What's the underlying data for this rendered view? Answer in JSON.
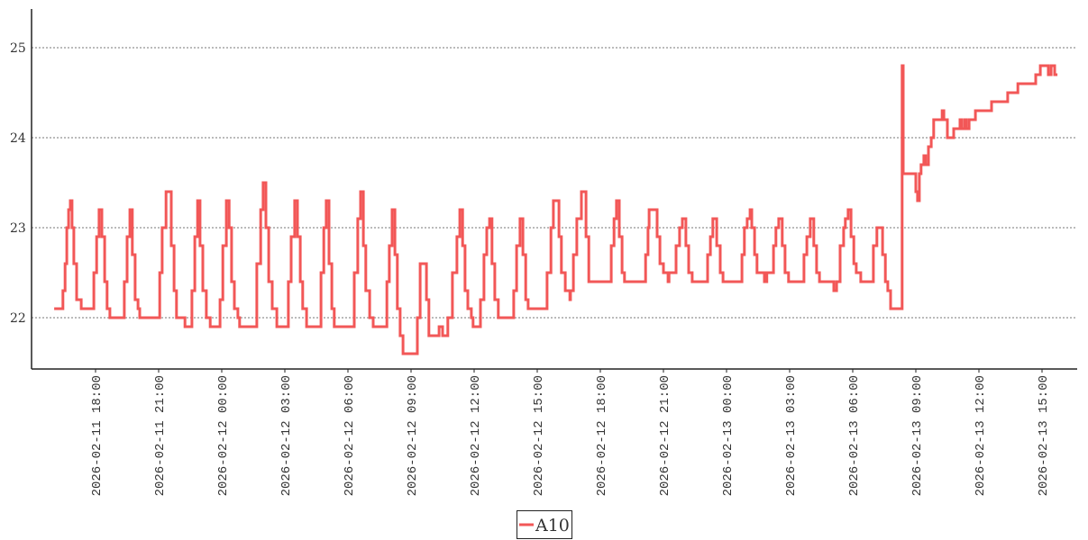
{
  "chart_data": {
    "type": "line",
    "step": "after",
    "title": "",
    "xlabel": "",
    "ylabel": "",
    "ylim": [
      21.43,
      25.43
    ],
    "xlim": [
      "2026-02-11 15:40",
      "2026-02-13 17:25"
    ],
    "grid": {
      "y": true,
      "x": false,
      "style": "dotted"
    },
    "legend": "bottom-center",
    "y_ticks": [
      "22",
      "23",
      "24",
      "25"
    ],
    "x_ticks": [
      "2026-02-11  18:00",
      "2026-02-11  21:00",
      "2026-02-12  00:00",
      "2026-02-12  03:00",
      "2026-02-12  06:00",
      "2026-02-12  09:00",
      "2026-02-12  12:00",
      "2026-02-12  15:00",
      "2026-02-12  18:00",
      "2026-02-12  21:00",
      "2026-02-13  00:00",
      "2026-02-13  03:00",
      "2026-02-13  06:00",
      "2026-02-13  09:00",
      "2026-02-13  12:00",
      "2026-02-13  15:00"
    ],
    "series": [
      {
        "name": "A10",
        "color": "#f25757",
        "points": [
          [
            "2026-02-11 16:02",
            22.1
          ],
          [
            "2026-02-11 16:20",
            22.1
          ],
          [
            "2026-02-11 16:27",
            22.3
          ],
          [
            "2026-02-11 16:33",
            22.6
          ],
          [
            "2026-02-11 16:38",
            23.0
          ],
          [
            "2026-02-11 16:43",
            23.2
          ],
          [
            "2026-02-11 16:48",
            23.3
          ],
          [
            "2026-02-11 16:53",
            23.0
          ],
          [
            "2026-02-11 16:58",
            22.6
          ],
          [
            "2026-02-11 17:06",
            22.2
          ],
          [
            "2026-02-11 17:19",
            22.1
          ],
          [
            "2026-02-11 17:47",
            22.1
          ],
          [
            "2026-02-11 17:55",
            22.5
          ],
          [
            "2026-02-11 18:03",
            22.9
          ],
          [
            "2026-02-11 18:10",
            23.2
          ],
          [
            "2026-02-11 18:18",
            22.9
          ],
          [
            "2026-02-11 18:26",
            22.4
          ],
          [
            "2026-02-11 18:33",
            22.1
          ],
          [
            "2026-02-11 18:41",
            22.0
          ],
          [
            "2026-02-11 19:15",
            22.0
          ],
          [
            "2026-02-11 19:22",
            22.4
          ],
          [
            "2026-02-11 19:30",
            22.9
          ],
          [
            "2026-02-11 19:38",
            23.2
          ],
          [
            "2026-02-11 19:45",
            22.7
          ],
          [
            "2026-02-11 19:53",
            22.2
          ],
          [
            "2026-02-11 20:01",
            22.1
          ],
          [
            "2026-02-11 20:06",
            22.0
          ],
          [
            "2026-02-11 20:55",
            22.0
          ],
          [
            "2026-02-11 21:03",
            22.5
          ],
          [
            "2026-02-11 21:10",
            23.0
          ],
          [
            "2026-02-11 21:21",
            23.4
          ],
          [
            "2026-02-11 21:28",
            23.4
          ],
          [
            "2026-02-11 21:36",
            22.8
          ],
          [
            "2026-02-11 21:44",
            22.3
          ],
          [
            "2026-02-11 21:51",
            22.0
          ],
          [
            "2026-02-11 22:15",
            21.9
          ],
          [
            "2026-02-11 22:30",
            21.9
          ],
          [
            "2026-02-11 22:35",
            22.3
          ],
          [
            "2026-02-11 22:43",
            22.9
          ],
          [
            "2026-02-11 22:51",
            23.3
          ],
          [
            "2026-02-11 22:58",
            22.8
          ],
          [
            "2026-02-11 23:06",
            22.3
          ],
          [
            "2026-02-11 23:16",
            22.0
          ],
          [
            "2026-02-11 23:27",
            21.9
          ],
          [
            "2026-02-11 23:50",
            21.9
          ],
          [
            "2026-02-11 23:55",
            22.2
          ],
          [
            "2026-02-12 00:03",
            22.8
          ],
          [
            "2026-02-12 00:13",
            23.3
          ],
          [
            "2026-02-12 00:21",
            23.0
          ],
          [
            "2026-02-12 00:28",
            22.4
          ],
          [
            "2026-02-12 00:36",
            22.1
          ],
          [
            "2026-02-12 00:46",
            22.0
          ],
          [
            "2026-02-12 00:51",
            21.9
          ],
          [
            "2026-02-12 01:30",
            21.9
          ],
          [
            "2026-02-12 01:40",
            22.6
          ],
          [
            "2026-02-12 01:51",
            23.2
          ],
          [
            "2026-02-12 01:58",
            23.5
          ],
          [
            "2026-02-12 02:06",
            23.0
          ],
          [
            "2026-02-12 02:14",
            22.4
          ],
          [
            "2026-02-12 02:24",
            22.1
          ],
          [
            "2026-02-12 02:37",
            21.9
          ],
          [
            "2026-02-12 03:05",
            21.9
          ],
          [
            "2026-02-12 03:10",
            22.4
          ],
          [
            "2026-02-12 03:18",
            22.9
          ],
          [
            "2026-02-12 03:28",
            23.3
          ],
          [
            "2026-02-12 03:36",
            22.9
          ],
          [
            "2026-02-12 03:44",
            22.4
          ],
          [
            "2026-02-12 03:51",
            22.1
          ],
          [
            "2026-02-12 04:02",
            21.9
          ],
          [
            "2026-02-12 04:35",
            21.9
          ],
          [
            "2026-02-12 04:43",
            22.5
          ],
          [
            "2026-02-12 04:51",
            23.0
          ],
          [
            "2026-02-12 04:58",
            23.3
          ],
          [
            "2026-02-12 05:06",
            22.6
          ],
          [
            "2026-02-12 05:14",
            22.1
          ],
          [
            "2026-02-12 05:21",
            21.9
          ],
          [
            "2026-02-12 06:10",
            21.9
          ],
          [
            "2026-02-12 06:18",
            22.5
          ],
          [
            "2026-02-12 06:28",
            23.1
          ],
          [
            "2026-02-12 06:36",
            23.4
          ],
          [
            "2026-02-12 06:44",
            22.8
          ],
          [
            "2026-02-12 06:51",
            22.3
          ],
          [
            "2026-02-12 07:02",
            22.0
          ],
          [
            "2026-02-12 07:12",
            21.9
          ],
          [
            "2026-02-12 07:43",
            21.9
          ],
          [
            "2026-02-12 07:51",
            22.4
          ],
          [
            "2026-02-12 07:58",
            22.8
          ],
          [
            "2026-02-12 08:06",
            23.2
          ],
          [
            "2026-02-12 08:14",
            22.7
          ],
          [
            "2026-02-12 08:21",
            22.1
          ],
          [
            "2026-02-12 08:29",
            21.8
          ],
          [
            "2026-02-12 08:37",
            21.6
          ],
          [
            "2026-02-12 09:10",
            21.6
          ],
          [
            "2026-02-12 09:18",
            22.0
          ],
          [
            "2026-02-12 09:26",
            22.6
          ],
          [
            "2026-02-12 09:36",
            22.6
          ],
          [
            "2026-02-12 09:44",
            22.2
          ],
          [
            "2026-02-12 09:51",
            21.8
          ],
          [
            "2026-02-12 10:17",
            21.8
          ],
          [
            "2026-02-12 10:20",
            21.9
          ],
          [
            "2026-02-12 10:27",
            21.9
          ],
          [
            "2026-02-12 10:30",
            21.8
          ],
          [
            "2026-02-12 10:40",
            21.8
          ],
          [
            "2026-02-12 10:45",
            22.0
          ],
          [
            "2026-02-12 10:58",
            22.5
          ],
          [
            "2026-02-12 11:11",
            22.9
          ],
          [
            "2026-02-12 11:19",
            23.2
          ],
          [
            "2026-02-12 11:27",
            22.8
          ],
          [
            "2026-02-12 11:34",
            22.3
          ],
          [
            "2026-02-12 11:42",
            22.1
          ],
          [
            "2026-02-12 11:52",
            22.0
          ],
          [
            "2026-02-12 11:57",
            21.9
          ],
          [
            "2026-02-12 12:08",
            21.9
          ],
          [
            "2026-02-12 12:18",
            22.2
          ],
          [
            "2026-02-12 12:28",
            22.7
          ],
          [
            "2026-02-12 12:36",
            23.0
          ],
          [
            "2026-02-12 12:44",
            23.1
          ],
          [
            "2026-02-12 12:51",
            22.6
          ],
          [
            "2026-02-12 12:59",
            22.2
          ],
          [
            "2026-02-12 13:09",
            22.0
          ],
          [
            "2026-02-12 13:45",
            22.0
          ],
          [
            "2026-02-12 13:53",
            22.3
          ],
          [
            "2026-02-12 14:01",
            22.8
          ],
          [
            "2026-02-12 14:11",
            23.1
          ],
          [
            "2026-02-12 14:19",
            22.7
          ],
          [
            "2026-02-12 14:27",
            22.2
          ],
          [
            "2026-02-12 14:34",
            22.1
          ],
          [
            "2026-02-12 15:18",
            22.1
          ],
          [
            "2026-02-12 15:28",
            22.5
          ],
          [
            "2026-02-12 15:39",
            23.0
          ],
          [
            "2026-02-12 15:46",
            23.3
          ],
          [
            "2026-02-12 15:54",
            23.3
          ],
          [
            "2026-02-12 16:02",
            22.9
          ],
          [
            "2026-02-12 16:09",
            22.5
          ],
          [
            "2026-02-12 16:20",
            22.3
          ],
          [
            "2026-02-12 16:33",
            22.2
          ],
          [
            "2026-02-12 16:35",
            22.3
          ],
          [
            "2026-02-12 16:43",
            22.7
          ],
          [
            "2026-02-12 16:53",
            23.1
          ],
          [
            "2026-02-12 17:06",
            23.4
          ],
          [
            "2026-02-12 17:19",
            22.9
          ],
          [
            "2026-02-12 17:27",
            22.4
          ],
          [
            "2026-02-12 18:23",
            22.4
          ],
          [
            "2026-02-12 18:31",
            22.8
          ],
          [
            "2026-02-12 18:39",
            23.1
          ],
          [
            "2026-02-12 18:46",
            23.3
          ],
          [
            "2026-02-12 18:54",
            22.9
          ],
          [
            "2026-02-12 19:02",
            22.5
          ],
          [
            "2026-02-12 19:09",
            22.4
          ],
          [
            "2026-02-12 19:58",
            22.4
          ],
          [
            "2026-02-12 20:09",
            22.7
          ],
          [
            "2026-02-12 20:16",
            23.0
          ],
          [
            "2026-02-12 20:19",
            23.2
          ],
          [
            "2026-02-12 20:34",
            23.2
          ],
          [
            "2026-02-12 20:42",
            22.9
          ],
          [
            "2026-02-12 20:50",
            22.6
          ],
          [
            "2026-02-12 21:00",
            22.5
          ],
          [
            "2026-02-12 21:13",
            22.4
          ],
          [
            "2026-02-12 21:16",
            22.5
          ],
          [
            "2026-02-12 21:28",
            22.5
          ],
          [
            "2026-02-12 21:36",
            22.8
          ],
          [
            "2026-02-12 21:46",
            23.0
          ],
          [
            "2026-02-12 21:54",
            23.1
          ],
          [
            "2026-02-12 22:04",
            22.8
          ],
          [
            "2026-02-12 22:12",
            22.5
          ],
          [
            "2026-02-12 22:22",
            22.4
          ],
          [
            "2026-02-12 22:56",
            22.4
          ],
          [
            "2026-02-12 23:06",
            22.7
          ],
          [
            "2026-02-12 23:14",
            22.9
          ],
          [
            "2026-02-12 23:21",
            23.1
          ],
          [
            "2026-02-12 23:32",
            22.8
          ],
          [
            "2026-02-12 23:42",
            22.5
          ],
          [
            "2026-02-12 23:50",
            22.4
          ],
          [
            "2026-02-13 00:36",
            22.4
          ],
          [
            "2026-02-13 00:44",
            22.7
          ],
          [
            "2026-02-13 00:51",
            23.0
          ],
          [
            "2026-02-13 00:59",
            23.1
          ],
          [
            "2026-02-13 01:07",
            23.2
          ],
          [
            "2026-02-13 01:12",
            23.0
          ],
          [
            "2026-02-13 01:20",
            22.7
          ],
          [
            "2026-02-13 01:27",
            22.5
          ],
          [
            "2026-02-13 01:48",
            22.4
          ],
          [
            "2026-02-13 01:55",
            22.5
          ],
          [
            "2026-02-13 02:03",
            22.5
          ],
          [
            "2026-02-13 02:14",
            22.8
          ],
          [
            "2026-02-13 02:21",
            23.0
          ],
          [
            "2026-02-13 02:29",
            23.1
          ],
          [
            "2026-02-13 02:39",
            22.8
          ],
          [
            "2026-02-13 02:47",
            22.5
          ],
          [
            "2026-02-13 02:57",
            22.4
          ],
          [
            "2026-02-13 03:31",
            22.4
          ],
          [
            "2026-02-13 03:41",
            22.7
          ],
          [
            "2026-02-13 03:49",
            22.9
          ],
          [
            "2026-02-13 03:59",
            23.1
          ],
          [
            "2026-02-13 04:09",
            22.8
          ],
          [
            "2026-02-13 04:17",
            22.5
          ],
          [
            "2026-02-13 04:25",
            22.4
          ],
          [
            "2026-02-13 05:03",
            22.4
          ],
          [
            "2026-02-13 05:06",
            22.3
          ],
          [
            "2026-02-13 05:14",
            22.4
          ],
          [
            "2026-02-13 05:24",
            22.8
          ],
          [
            "2026-02-13 05:34",
            23.0
          ],
          [
            "2026-02-13 05:39",
            23.1
          ],
          [
            "2026-02-13 05:47",
            23.2
          ],
          [
            "2026-02-13 05:55",
            22.9
          ],
          [
            "2026-02-13 06:03",
            22.6
          ],
          [
            "2026-02-13 06:10",
            22.5
          ],
          [
            "2026-02-13 06:23",
            22.4
          ],
          [
            "2026-02-13 06:51",
            22.4
          ],
          [
            "2026-02-13 06:59",
            22.8
          ],
          [
            "2026-02-13 07:09",
            23.0
          ],
          [
            "2026-02-13 07:17",
            23.0
          ],
          [
            "2026-02-13 07:25",
            22.7
          ],
          [
            "2026-02-13 07:33",
            22.4
          ],
          [
            "2026-02-13 07:40",
            22.3
          ],
          [
            "2026-02-13 07:48",
            22.1
          ],
          [
            "2026-02-13 08:19",
            22.1
          ],
          [
            "2026-02-13 08:21",
            24.8
          ],
          [
            "2026-02-13 08:24",
            23.6
          ],
          [
            "2026-02-13 08:55",
            23.6
          ],
          [
            "2026-02-13 09:00",
            23.4
          ],
          [
            "2026-02-13 09:05",
            23.3
          ],
          [
            "2026-02-13 09:10",
            23.6
          ],
          [
            "2026-02-13 09:15",
            23.7
          ],
          [
            "2026-02-13 09:23",
            23.8
          ],
          [
            "2026-02-13 09:28",
            23.7
          ],
          [
            "2026-02-13 09:36",
            23.9
          ],
          [
            "2026-02-13 09:44",
            24.0
          ],
          [
            "2026-02-13 09:51",
            24.2
          ],
          [
            "2026-02-13 10:15",
            24.3
          ],
          [
            "2026-02-13 10:20",
            24.2
          ],
          [
            "2026-02-13 10:30",
            24.0
          ],
          [
            "2026-02-13 10:48",
            24.1
          ],
          [
            "2026-02-13 11:06",
            24.2
          ],
          [
            "2026-02-13 11:11",
            24.1
          ],
          [
            "2026-02-13 11:19",
            24.2
          ],
          [
            "2026-02-13 11:24",
            24.1
          ],
          [
            "2026-02-13 11:32",
            24.2
          ],
          [
            "2026-02-13 11:50",
            24.3
          ],
          [
            "2026-02-13 12:36",
            24.4
          ],
          [
            "2026-02-13 13:22",
            24.5
          ],
          [
            "2026-02-13 13:51",
            24.6
          ],
          [
            "2026-02-13 14:42",
            24.7
          ],
          [
            "2026-02-13 14:55",
            24.8
          ],
          [
            "2026-02-13 15:18",
            24.7
          ],
          [
            "2026-02-13 15:26",
            24.8
          ],
          [
            "2026-02-13 15:36",
            24.7
          ],
          [
            "2026-02-13 15:44",
            24.7
          ]
        ]
      }
    ]
  }
}
